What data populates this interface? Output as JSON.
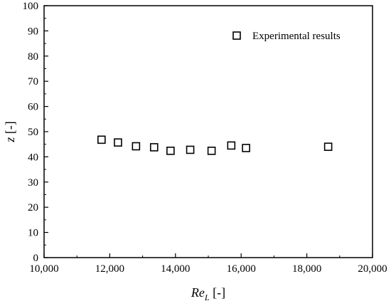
{
  "chart_data": {
    "type": "scatter",
    "title": "",
    "xlabel": "Re_L [-]",
    "xlabel_main": "Re",
    "xlabel_sub": "L",
    "xlabel_unit": " [-]",
    "ylabel": "z [-]",
    "ylabel_main": "z",
    "ylabel_unit": " [-]",
    "xlim": [
      10000,
      20000
    ],
    "ylim": [
      0,
      100
    ],
    "x_ticks": [
      10000,
      12000,
      14000,
      16000,
      18000,
      20000
    ],
    "x_tick_labels": [
      "10,000",
      "12,000",
      "14,000",
      "16,000",
      "18,000",
      "20,000"
    ],
    "y_ticks": [
      0,
      10,
      20,
      30,
      40,
      50,
      60,
      70,
      80,
      90,
      100
    ],
    "y_tick_labels": [
      "0",
      "10",
      "20",
      "30",
      "40",
      "50",
      "60",
      "70",
      "80",
      "90",
      "100"
    ],
    "grid": false,
    "legend_position": "top-right",
    "series": [
      {
        "name": "Experimental results",
        "marker": "open-square",
        "x": [
          11750,
          12250,
          12800,
          13350,
          13850,
          14450,
          15100,
          15700,
          16150,
          18650
        ],
        "y": [
          46.8,
          45.7,
          44.2,
          43.8,
          42.4,
          42.8,
          42.4,
          44.5,
          43.5,
          44.0
        ]
      }
    ]
  }
}
